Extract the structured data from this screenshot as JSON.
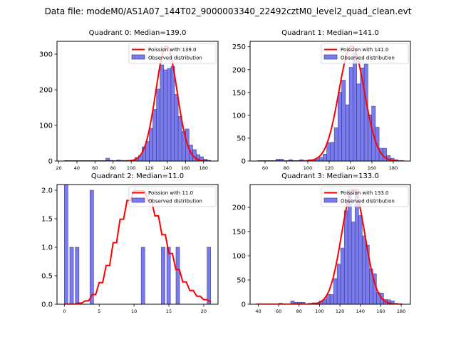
{
  "figure": {
    "suptitle": "Data file: modeM0/AS1A07_144T02_9000003340_22492cztM0_level2_quad_clean.evt"
  },
  "colors": {
    "poisson_line": "#ff0000",
    "hist_fill": "#7b7bf0",
    "hist_edge": "#2a2a6a",
    "axes": "#000000"
  },
  "chart_data": [
    {
      "type": "bar",
      "title": "Quadrant 0: Median=139.0",
      "xlim": [
        18,
        196
      ],
      "ylim": [
        0,
        336
      ],
      "xticks": [
        20,
        40,
        60,
        80,
        100,
        120,
        140,
        160,
        180
      ],
      "yticks": [
        0,
        100,
        200,
        300
      ],
      "ytick_labels": [
        "0",
        "100",
        "200",
        "300"
      ],
      "bin_width": 4,
      "bins": [
        {
          "x": 74,
          "y": 8
        },
        {
          "x": 78,
          "y": 2
        },
        {
          "x": 86,
          "y": 3
        },
        {
          "x": 90,
          "y": 2
        },
        {
          "x": 98,
          "y": 2
        },
        {
          "x": 102,
          "y": 3
        },
        {
          "x": 106,
          "y": 10
        },
        {
          "x": 110,
          "y": 15
        },
        {
          "x": 114,
          "y": 40
        },
        {
          "x": 118,
          "y": 55
        },
        {
          "x": 122,
          "y": 92
        },
        {
          "x": 126,
          "y": 145
        },
        {
          "x": 130,
          "y": 202
        },
        {
          "x": 134,
          "y": 270
        },
        {
          "x": 138,
          "y": 256
        },
        {
          "x": 142,
          "y": 260
        },
        {
          "x": 146,
          "y": 266
        },
        {
          "x": 150,
          "y": 187
        },
        {
          "x": 154,
          "y": 125
        },
        {
          "x": 158,
          "y": 83
        },
        {
          "x": 162,
          "y": 90
        },
        {
          "x": 166,
          "y": 45
        },
        {
          "x": 170,
          "y": 32
        },
        {
          "x": 174,
          "y": 18
        },
        {
          "x": 178,
          "y": 12
        },
        {
          "x": 182,
          "y": 5
        },
        {
          "x": 186,
          "y": 2
        }
      ],
      "poisson": {
        "mean": 139.0,
        "peak": 322,
        "sigma": 11.8,
        "x_range": [
          26,
          187
        ]
      },
      "legend": {
        "line_label": "Poission with 139.0",
        "bar_label": "Observed distribution",
        "placement": "top-right"
      }
    },
    {
      "type": "bar",
      "title": "Quadrant 1: Median=141.0",
      "xlim": [
        46,
        196
      ],
      "ylim": [
        0,
        262
      ],
      "xticks": [
        60,
        80,
        100,
        120,
        140,
        160,
        180
      ],
      "yticks": [
        0,
        50,
        100,
        150,
        200,
        250
      ],
      "ytick_labels": [
        "0",
        "50",
        "100",
        "150",
        "200",
        "250"
      ],
      "bin_width": 3.5,
      "bins": [
        {
          "x": 72,
          "y": 4
        },
        {
          "x": 75.5,
          "y": 4
        },
        {
          "x": 84,
          "y": 3
        },
        {
          "x": 94,
          "y": 3
        },
        {
          "x": 102,
          "y": 3
        },
        {
          "x": 105.5,
          "y": 3
        },
        {
          "x": 109,
          "y": 5
        },
        {
          "x": 112.5,
          "y": 8
        },
        {
          "x": 116,
          "y": 15
        },
        {
          "x": 119.5,
          "y": 40
        },
        {
          "x": 123,
          "y": 41
        },
        {
          "x": 126.5,
          "y": 73
        },
        {
          "x": 130,
          "y": 151
        },
        {
          "x": 133.5,
          "y": 177
        },
        {
          "x": 137,
          "y": 123
        },
        {
          "x": 140.5,
          "y": 205
        },
        {
          "x": 144,
          "y": 237
        },
        {
          "x": 147.5,
          "y": 169
        },
        {
          "x": 151,
          "y": 204
        },
        {
          "x": 154.5,
          "y": 212
        },
        {
          "x": 158,
          "y": 101
        },
        {
          "x": 161.5,
          "y": 120
        },
        {
          "x": 165,
          "y": 74
        },
        {
          "x": 168.5,
          "y": 28
        },
        {
          "x": 172,
          "y": 28
        },
        {
          "x": 175.5,
          "y": 12
        },
        {
          "x": 179,
          "y": 6
        },
        {
          "x": 182.5,
          "y": 3
        }
      ],
      "poisson": {
        "mean": 141.0,
        "peak": 252,
        "sigma": 11.9,
        "x_range": [
          53,
          190
        ]
      },
      "legend": {
        "line_label": "Poission with 141.0",
        "bar_label": "Observed distribution",
        "placement": "top-right"
      }
    },
    {
      "type": "bar",
      "title": "Quadrant 2: Median=11.0",
      "xlim": [
        -1.05,
        22.05
      ],
      "ylim": [
        0,
        2.1
      ],
      "xticks": [
        0,
        5,
        10,
        15,
        20
      ],
      "yticks": [
        0,
        0.5,
        1.0,
        1.5,
        2.0
      ],
      "ytick_labels": [
        "0.0",
        "0.5",
        "1.0",
        "1.5",
        "2.0"
      ],
      "bin_width": 0.525,
      "bins": [
        {
          "x": 0.26,
          "y": 3
        },
        {
          "x": 1.05,
          "y": 1
        },
        {
          "x": 1.84,
          "y": 1
        },
        {
          "x": 3.94,
          "y": 2
        },
        {
          "x": 11.29,
          "y": 1
        },
        {
          "x": 14.18,
          "y": 1
        },
        {
          "x": 14.96,
          "y": 1
        },
        {
          "x": 16.28,
          "y": 1
        },
        {
          "x": 20.74,
          "y": 1
        }
      ],
      "poisson_steps": [
        {
          "x": 0,
          "y": 0.0
        },
        {
          "x": 0.5,
          "y": 0.0
        },
        {
          "x": 1,
          "y": 0.0
        },
        {
          "x": 1.5,
          "y": 0.0
        },
        {
          "x": 2,
          "y": 0.02
        },
        {
          "x": 2.5,
          "y": 0.02
        },
        {
          "x": 3,
          "y": 0.06
        },
        {
          "x": 3.5,
          "y": 0.06
        },
        {
          "x": 4,
          "y": 0.17
        },
        {
          "x": 4.5,
          "y": 0.17
        },
        {
          "x": 5,
          "y": 0.38
        },
        {
          "x": 5.5,
          "y": 0.38
        },
        {
          "x": 6,
          "y": 0.68
        },
        {
          "x": 6.5,
          "y": 0.68
        },
        {
          "x": 7,
          "y": 1.08
        },
        {
          "x": 7.5,
          "y": 1.08
        },
        {
          "x": 8,
          "y": 1.49
        },
        {
          "x": 8.5,
          "y": 1.49
        },
        {
          "x": 9,
          "y": 1.82
        },
        {
          "x": 9.5,
          "y": 1.82
        },
        {
          "x": 10,
          "y": 1.99
        },
        {
          "x": 10.5,
          "y": 1.99
        },
        {
          "x": 11,
          "y": 1.99
        },
        {
          "x": 11.5,
          "y": 1.99
        },
        {
          "x": 12,
          "y": 1.82
        },
        {
          "x": 12.5,
          "y": 1.82
        },
        {
          "x": 13,
          "y": 1.55
        },
        {
          "x": 13.5,
          "y": 1.55
        },
        {
          "x": 14,
          "y": 1.22
        },
        {
          "x": 14.5,
          "y": 1.22
        },
        {
          "x": 15,
          "y": 0.89
        },
        {
          "x": 15.5,
          "y": 0.89
        },
        {
          "x": 16,
          "y": 0.61
        },
        {
          "x": 16.5,
          "y": 0.61
        },
        {
          "x": 17,
          "y": 0.39
        },
        {
          "x": 17.5,
          "y": 0.39
        },
        {
          "x": 18,
          "y": 0.24
        },
        {
          "x": 18.5,
          "y": 0.24
        },
        {
          "x": 19,
          "y": 0.14
        },
        {
          "x": 19.5,
          "y": 0.14
        },
        {
          "x": 20,
          "y": 0.08
        },
        {
          "x": 20.5,
          "y": 0.08
        },
        {
          "x": 21,
          "y": 0.04
        }
      ],
      "legend": {
        "line_label": "Poission with 11.0",
        "bar_label": "Observed distribution",
        "placement": "top-right"
      }
    },
    {
      "type": "bar",
      "title": "Quadrant 3: Median=133.0",
      "xlim": [
        32,
        189
      ],
      "ylim": [
        0,
        247
      ],
      "xticks": [
        40,
        60,
        80,
        100,
        120,
        140,
        160,
        180
      ],
      "yticks": [
        0,
        50,
        100,
        150,
        200
      ],
      "ytick_labels": [
        "0",
        "50",
        "100",
        "150",
        "200"
      ],
      "bin_width": 3.5,
      "bins": [
        {
          "x": 62,
          "y": 2
        },
        {
          "x": 73.5,
          "y": 7
        },
        {
          "x": 77,
          "y": 4
        },
        {
          "x": 80.5,
          "y": 4
        },
        {
          "x": 84,
          "y": 4
        },
        {
          "x": 91,
          "y": 2
        },
        {
          "x": 94.5,
          "y": 3
        },
        {
          "x": 98,
          "y": 3
        },
        {
          "x": 101.5,
          "y": 7
        },
        {
          "x": 105,
          "y": 10
        },
        {
          "x": 108.5,
          "y": 20
        },
        {
          "x": 112,
          "y": 20
        },
        {
          "x": 115.5,
          "y": 53
        },
        {
          "x": 119,
          "y": 83
        },
        {
          "x": 122.5,
          "y": 116
        },
        {
          "x": 126,
          "y": 193
        },
        {
          "x": 129.5,
          "y": 236
        },
        {
          "x": 133,
          "y": 170
        },
        {
          "x": 136.5,
          "y": 237
        },
        {
          "x": 140,
          "y": 183
        },
        {
          "x": 143.5,
          "y": 141
        },
        {
          "x": 147,
          "y": 122
        },
        {
          "x": 150.5,
          "y": 73
        },
        {
          "x": 154,
          "y": 63
        },
        {
          "x": 157.5,
          "y": 24
        },
        {
          "x": 161,
          "y": 23
        },
        {
          "x": 164.5,
          "y": 10
        },
        {
          "x": 168,
          "y": 9
        },
        {
          "x": 171.5,
          "y": 7
        },
        {
          "x": 175,
          "y": 2
        }
      ],
      "poisson": {
        "mean": 133.0,
        "peak": 236,
        "sigma": 11.5,
        "x_range": [
          38,
          181
        ]
      },
      "legend": {
        "line_label": "Poission with 133.0",
        "bar_label": "Observed distribution",
        "placement": "top-right"
      }
    }
  ]
}
